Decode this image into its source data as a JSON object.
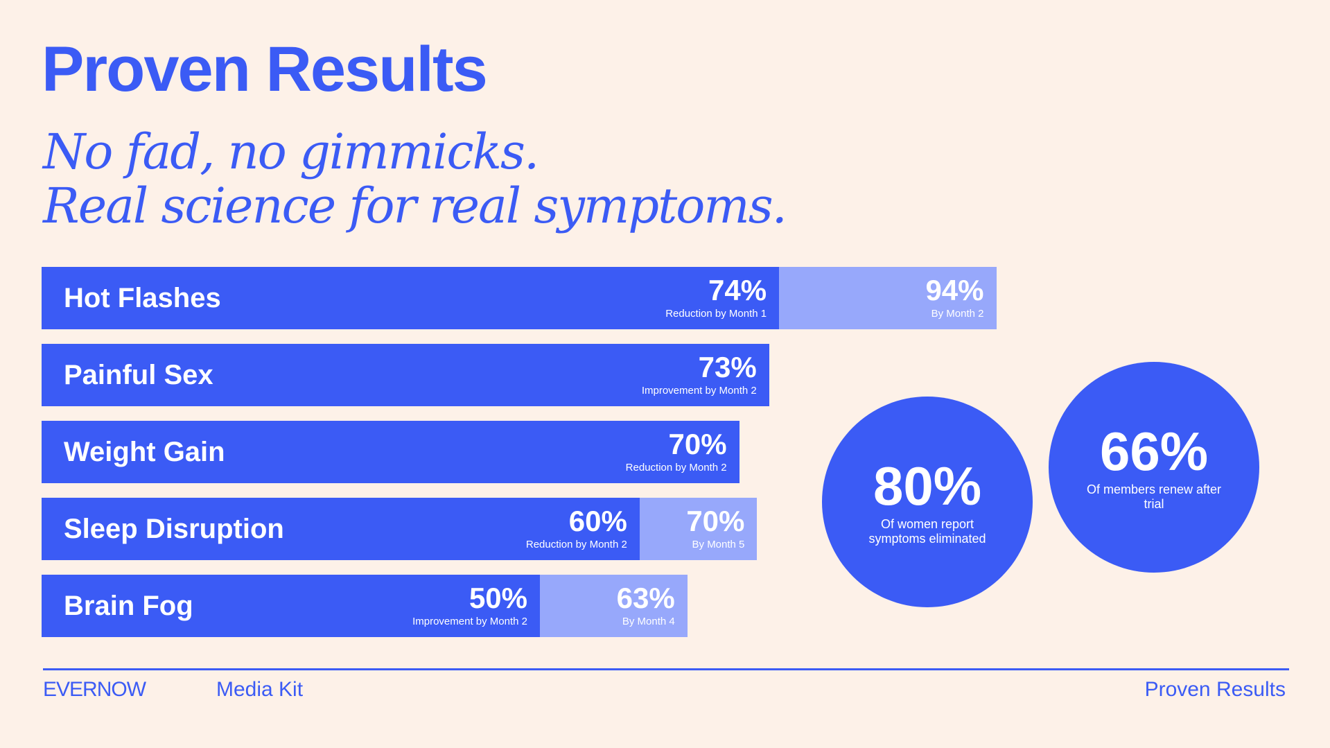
{
  "page": {
    "title": "Proven Results",
    "subtitle_line1": "No fad, no gimmicks.",
    "subtitle_line2": "Real science for real symptoms."
  },
  "chart_data": {
    "type": "bar",
    "orientation": "horizontal",
    "unit": "%",
    "colors": {
      "primary": "#3b5bf5",
      "secondary": "#97a8fb",
      "background": "#fdf1e8"
    },
    "rows": [
      {
        "category": "Hot Flashes",
        "primary": {
          "value": 74,
          "note": "Reduction by Month 1"
        },
        "secondary": {
          "value": 94,
          "note": "By Month 2"
        }
      },
      {
        "category": "Painful Sex",
        "primary": {
          "value": 73,
          "note": "Improvement by Month 2"
        }
      },
      {
        "category": "Weight Gain",
        "primary": {
          "value": 70,
          "note": "Reduction by Month 2"
        }
      },
      {
        "category": "Sleep Disruption",
        "primary": {
          "value": 60,
          "note": "Reduction by Month 2"
        },
        "secondary": {
          "value": 70,
          "note": "By Month 5"
        }
      },
      {
        "category": "Brain Fog",
        "primary": {
          "value": 50,
          "note": "Improvement by Month 2"
        },
        "secondary": {
          "value": 63,
          "note": "By Month 4"
        }
      }
    ]
  },
  "callouts": [
    {
      "value": "80%",
      "text": "Of women report symptoms eliminated"
    },
    {
      "value": "66%",
      "text": "Of members renew after trial"
    }
  ],
  "footer": {
    "brand": "EVERNOW",
    "section": "Media Kit",
    "page_title": "Proven Results"
  }
}
